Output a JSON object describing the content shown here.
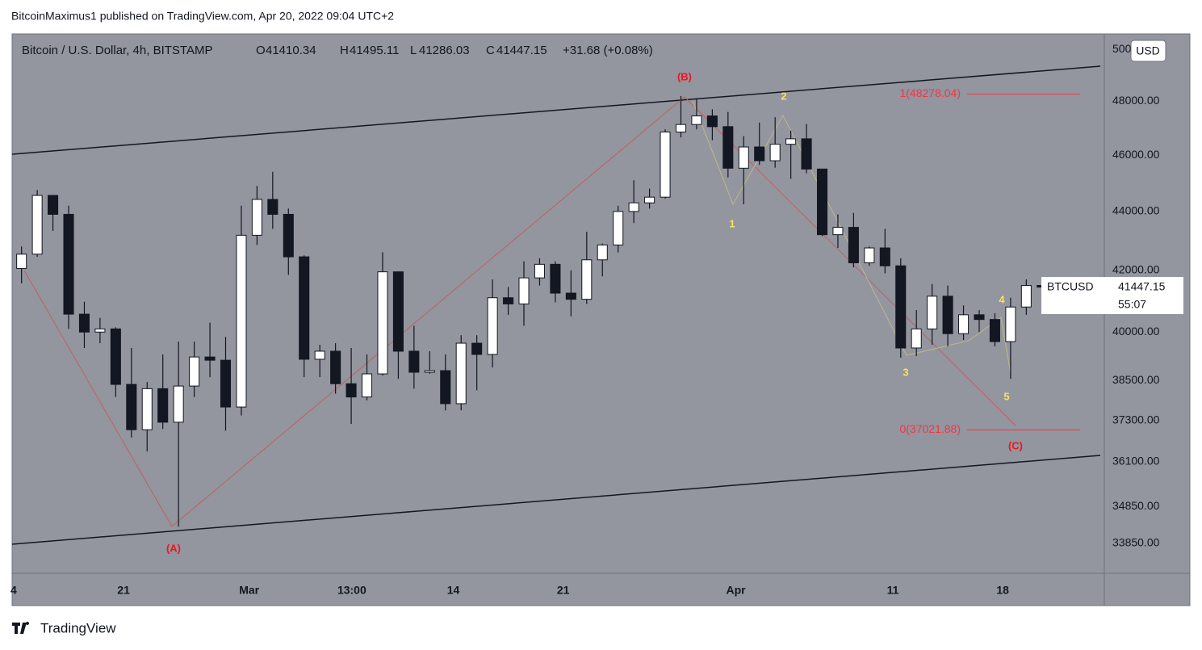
{
  "page": {
    "attribution": "BitcoinMaximus1 published on TradingView.com, Apr 20, 2022 09:04 UTC+2",
    "brand": "TradingView"
  },
  "chart_data": {
    "type": "candlestick",
    "title": "Bitcoin / U.S. Dollar, 4h, BITSTAMP",
    "legend": {
      "o_key": "O",
      "open": 41410.34,
      "h_key": "H",
      "high": 41495.11,
      "l_key": "L",
      "low": 41286.03,
      "c_key": "C",
      "close": 41447.15,
      "change": "+31.68 (+0.08%)"
    },
    "symbol": "BTCUSD",
    "last_price": 41447.15,
    "countdown": "55:07",
    "currency": "USD",
    "log_scale": true,
    "grid": false,
    "up_color": "#ffffff",
    "down_color": "#131722",
    "x": [
      45,
      46,
      47,
      48,
      49,
      50,
      51,
      52,
      53,
      54,
      55,
      56,
      57,
      58,
      59,
      60,
      61,
      62,
      63,
      64,
      65,
      66,
      67,
      68,
      69,
      70,
      71,
      72,
      73,
      74,
      75,
      76,
      77,
      78,
      79,
      80,
      81,
      82,
      83,
      84,
      85,
      86,
      87,
      88,
      89,
      90,
      91,
      92,
      93,
      94,
      95,
      96,
      97,
      98,
      99,
      100,
      101,
      102,
      103,
      104,
      105,
      106,
      107,
      108,
      109,
      110
    ],
    "open": [
      42060,
      42540,
      44560,
      43900,
      40570,
      40000,
      40100,
      38380,
      37030,
      38250,
      37250,
      38330,
      39220,
      39120,
      37700,
      43180,
      44420,
      43900,
      42450,
      39150,
      39400,
      38400,
      38000,
      38700,
      41950,
      39400,
      38750,
      38800,
      37800,
      39650,
      39300,
      41100,
      40900,
      41750,
      42200,
      41250,
      41050,
      42350,
      42850,
      44000,
      44300,
      44500,
      46850,
      47130,
      47450,
      47050,
      45530,
      46300,
      45800,
      46400,
      46600,
      45500,
      43200,
      43450,
      42250,
      42750,
      42150,
      39500,
      40100,
      41150,
      39950,
      40550,
      40400,
      39700,
      40800,
      41500
    ],
    "high": [
      42800,
      44750,
      44560,
      44200,
      40970,
      40450,
      40150,
      39500,
      38450,
      39300,
      39700,
      39700,
      40300,
      39850,
      44200,
      44900,
      45400,
      44100,
      42500,
      39600,
      39650,
      39500,
      39300,
      42600,
      41950,
      40200,
      39400,
      39300,
      39900,
      39900,
      41700,
      41450,
      42300,
      42400,
      42300,
      42000,
      43300,
      42900,
      44200,
      45100,
      44800,
      46950,
      48200,
      48100,
      47700,
      47600,
      46700,
      47200,
      47400,
      46900,
      47150,
      45500,
      43900,
      43950,
      42800,
      43400,
      42400,
      40700,
      41550,
      41500,
      40850,
      40700,
      40600,
      41100,
      41700,
      41550
    ],
    "low": [
      41570,
      42450,
      43330,
      40100,
      39500,
      39650,
      38000,
      36800,
      36400,
      37050,
      34300,
      38000,
      38600,
      37000,
      37450,
      42850,
      43400,
      41850,
      38600,
      38600,
      38100,
      37200,
      37900,
      38650,
      38550,
      38250,
      38700,
      37600,
      37600,
      38200,
      38900,
      40550,
      40200,
      41500,
      40950,
      40500,
      40900,
      41800,
      42600,
      43600,
      44100,
      44450,
      46650,
      46950,
      46550,
      45200,
      44250,
      45650,
      45550,
      45150,
      45350,
      43150,
      42750,
      42100,
      42150,
      41900,
      39200,
      39250,
      39600,
      39550,
      39750,
      40000,
      39550,
      38550,
      40550,
      41300
    ],
    "close": [
      42540,
      44560,
      43900,
      40570,
      40000,
      40100,
      38380,
      37030,
      38250,
      37250,
      38330,
      39220,
      39120,
      37700,
      43180,
      44420,
      43900,
      42450,
      39150,
      39400,
      38400,
      38000,
      38700,
      41950,
      39400,
      38750,
      38800,
      37800,
      39650,
      39300,
      41100,
      40900,
      41750,
      42200,
      41250,
      41050,
      42350,
      42850,
      44000,
      44300,
      44500,
      46850,
      47130,
      47450,
      47050,
      45530,
      46300,
      45800,
      46400,
      46600,
      45500,
      43200,
      43450,
      42250,
      42750,
      42150,
      39500,
      40100,
      41150,
      39950,
      40550,
      40400,
      39700,
      40800,
      41500,
      41447.15
    ],
    "xlim": [
      44.9,
      114.47
    ],
    "xticks": [
      {
        "value": 45,
        "label": "4"
      },
      {
        "value": 52,
        "label": "21"
      },
      {
        "value": 60,
        "label": "Mar"
      },
      {
        "value": 66.54,
        "label": "13:00"
      },
      {
        "value": 73,
        "label": "14"
      },
      {
        "value": 80,
        "label": "21"
      },
      {
        "value": 91,
        "label": "Apr"
      },
      {
        "value": 101,
        "label": "11"
      },
      {
        "value": 108,
        "label": "18"
      }
    ],
    "ylim": [
      33058,
      50627
    ],
    "yticks": [
      {
        "value": 50000,
        "label": "50000.00"
      },
      {
        "value": 48000,
        "label": "48000.00"
      },
      {
        "value": 46000,
        "label": "46000.00"
      },
      {
        "value": 44000,
        "label": "44000.00"
      },
      {
        "value": 42000,
        "label": "42000.00"
      },
      {
        "value": 40000,
        "label": "40000.00"
      },
      {
        "value": 38500,
        "label": "38500.00"
      },
      {
        "value": 37300,
        "label": "37300.00"
      },
      {
        "value": 36100,
        "label": "36100.00"
      },
      {
        "value": 34850,
        "label": "34850.00"
      },
      {
        "value": 33850,
        "label": "33850.00"
      }
    ],
    "fib_levels": [
      {
        "value": 48278.04,
        "label": "1(48278.04)"
      },
      {
        "value": 37021.88,
        "label": "0(37021.88)"
      }
    ],
    "fib_color": "#f23645",
    "primary_waves": [
      "(A)",
      "(B)",
      "(C)"
    ],
    "primary_color": "#f0141e",
    "minor_waves": [
      "1",
      "2",
      "3",
      "4",
      "5"
    ],
    "minor_color": "#fbe25c"
  }
}
